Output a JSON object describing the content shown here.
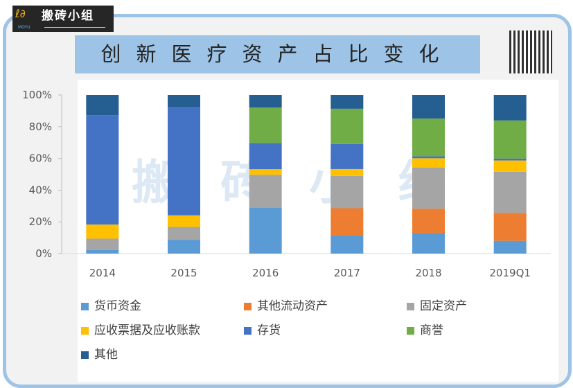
{
  "logo": {
    "text": "搬砖小组",
    "sub": "MOYU"
  },
  "title": "创新医疗资产占比变化",
  "watermark": "搬砖小组",
  "chart_data": {
    "type": "bar",
    "stacked": true,
    "title": "创新医疗资产占比变化",
    "categories": [
      "2014",
      "2015",
      "2016",
      "2017",
      "2018",
      "2019Q1"
    ],
    "ylim": [
      0,
      100
    ],
    "yticks": [
      "0%",
      "20%",
      "40%",
      "60%",
      "80%",
      "100%"
    ],
    "legend_position": "bottom",
    "grid": false,
    "series": [
      {
        "name": "货币资金",
        "color": "#5b9bd5",
        "values": [
          2.2,
          8.7,
          29.0,
          11.6,
          12.9,
          8.0
        ]
      },
      {
        "name": "其他流动资产",
        "color": "#ed7d31",
        "values": [
          0,
          0,
          0,
          17.0,
          15.4,
          17.7
        ]
      },
      {
        "name": "固定资产",
        "color": "#a5a5a5",
        "values": [
          7.2,
          8.1,
          20.7,
          20.4,
          26.0,
          25.9
        ]
      },
      {
        "name": "应收票据及应收账款",
        "color": "#ffc000",
        "values": [
          8.9,
          7.3,
          3.5,
          4.3,
          5.8,
          7.1
        ]
      },
      {
        "name": "存货",
        "color": "#4472c4",
        "values": [
          68.9,
          68.1,
          16.5,
          15.8,
          1.2,
          1.2
        ]
      },
      {
        "name": "商誉",
        "color": "#70ad47",
        "values": [
          0,
          0,
          22.3,
          22.2,
          23.8,
          24.0
        ]
      },
      {
        "name": "其他",
        "color": "#255e91",
        "values": [
          12.8,
          7.8,
          8.0,
          8.7,
          14.9,
          16.1
        ]
      }
    ]
  }
}
